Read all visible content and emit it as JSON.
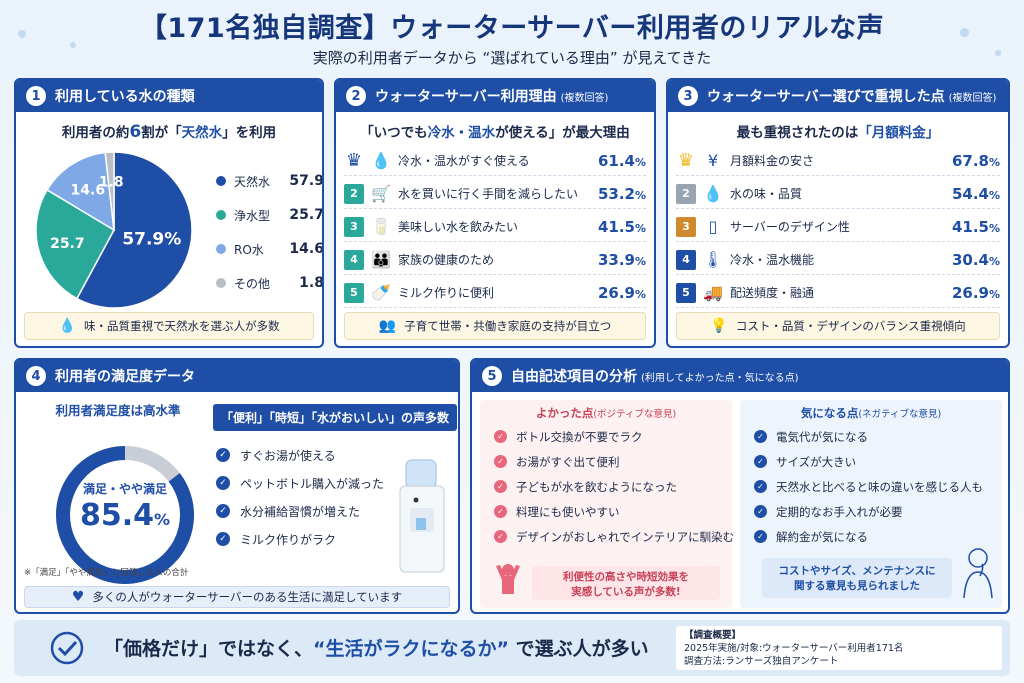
{
  "header": {
    "title": "【171名独自調査】ウォーターサーバー利用者のリアルな声",
    "subtitle": "実際の利用者データから “選ばれている理由” が見えてきた"
  },
  "panel1": {
    "num": "1",
    "heading": "利用している水の種類",
    "lead_pre": "利用者の約",
    "lead_num": "6",
    "lead_mid": "割が「",
    "lead_hl": "天然水",
    "lead_post": "」を利用",
    "note": "味・品質重視で天然水を選ぶ人が多数"
  },
  "panel2": {
    "num": "2",
    "heading": "ウォーターサーバー利用理由",
    "heading_small": "(複数回答)",
    "lead_pre": "「いつでも",
    "lead_hl": "冷水・温水",
    "lead_post": "が使える」が最大理由",
    "note": "子育て世帯・共働き家庭の支持が目立つ"
  },
  "panel3": {
    "num": "3",
    "heading": "ウォーターサーバー選びで重視した点",
    "heading_small": "(複数回答)",
    "lead_pre": "最も重視されたのは",
    "lead_hl": "「月額料金」",
    "note": "コスト・品質・デザインのバランス重視傾向"
  },
  "panel4": {
    "num": "4",
    "heading": "利用者の満足度データ",
    "ring_title": "利用者満足度は高水準",
    "ring_label": "満足・やや満足",
    "ring_value": "85.4",
    "ring_unit": "%",
    "bubble": "「便利」「時短」「水がおいしい」の声多数",
    "checks": [
      "すぐお湯が使える",
      "ペットボトル購入が減った",
      "水分補給習慣が増えた",
      "ミルク作りがラク"
    ],
    "footnote": "※「満足」「やや満足」と回答した人の合計",
    "note": "多くの人がウォーターサーバーのある生活に満足しています"
  },
  "panel5": {
    "num": "5",
    "heading": "自由記述項目の分析",
    "heading_small": "(利用してよかった点・気になる点)",
    "good_title": "よかった点",
    "good_small": "(ポジティブな意見)",
    "good_items": [
      "ボトル交換が不要でラク",
      "お湯がすぐ出て便利",
      "子どもが水を飲むようになった",
      "料理にも使いやすい",
      "デザインがおしゃれでインテリアに馴染む"
    ],
    "good_note_1": "利便性の高さや時短効果を",
    "good_note_2": "実感している声が多数!",
    "bad_title": "気になる点",
    "bad_small": "(ネガティブな意見)",
    "bad_items": [
      "電気代が気になる",
      "サイズが大きい",
      "天然水と比べると味の違いを感じる人も",
      "定期的なお手入れが必要",
      "解約金が気になる"
    ],
    "bad_note_1": "コストやサイズ、メンテナンスに",
    "bad_note_2": "関する意見も見られました"
  },
  "footer": {
    "msg_1": "「",
    "msg_2": "価格だけ",
    "msg_3": "」ではなく、",
    "msg_4": "“生活がラクになるか”",
    "msg_5": " で選ぶ人が多い",
    "survey_title": "【調査概要】",
    "survey_line1": "2025年実施/対象:ウォーターサーバー利用者171名",
    "survey_line2": "調査方法:ランサーズ独自アンケート"
  },
  "colors": {
    "primary": "#1f4ea6",
    "teal": "#2aa99b",
    "light_blue": "#7fa9e6",
    "gray": "#b9bdc4",
    "gold": "#f2b91e",
    "bronze": "#cf8a2e",
    "pink": "#e8677c"
  },
  "chart_data": [
    {
      "type": "pie",
      "categories": [
        "天然水",
        "浄水型",
        "RO水",
        "その他"
      ],
      "values": [
        57.9,
        25.7,
        14.6,
        1.8
      ],
      "unit": "%",
      "icons": [
        "water-drop",
        "water-drop",
        "water-drop",
        "water-drop"
      ]
    },
    {
      "type": "bar",
      "categories": [
        "冷水・温水がすぐ使える",
        "水を買いに行く手間を減らしたい",
        "美味しい水を飲みたい",
        "家族の健康のため",
        "ミルク作りに便利"
      ],
      "values": [
        61.4,
        53.2,
        41.5,
        33.9,
        26.9
      ],
      "ranks": [
        "1",
        "2",
        "3",
        "4",
        "5"
      ],
      "unit": "%",
      "icons": [
        "water-drop-icon",
        "cart-icon",
        "glass-icon",
        "family-icon",
        "bottle-icon"
      ]
    },
    {
      "type": "bar",
      "categories": [
        "月額料金の安さ",
        "水の味・品質",
        "サーバーのデザイン性",
        "冷水・温水機能",
        "配送頻度・融通"
      ],
      "values": [
        67.8,
        54.4,
        41.5,
        30.4,
        26.9
      ],
      "ranks": [
        "1",
        "2",
        "3",
        "4",
        "5"
      ],
      "unit": "%",
      "icons": [
        "yen-icon",
        "water-drop-icon",
        "server-icon",
        "thermometer-icon",
        "truck-icon"
      ]
    },
    {
      "type": "pie",
      "categories": [
        "満足・やや満足",
        ""
      ],
      "values": [
        85.4,
        14.6
      ],
      "unit": "%"
    }
  ]
}
